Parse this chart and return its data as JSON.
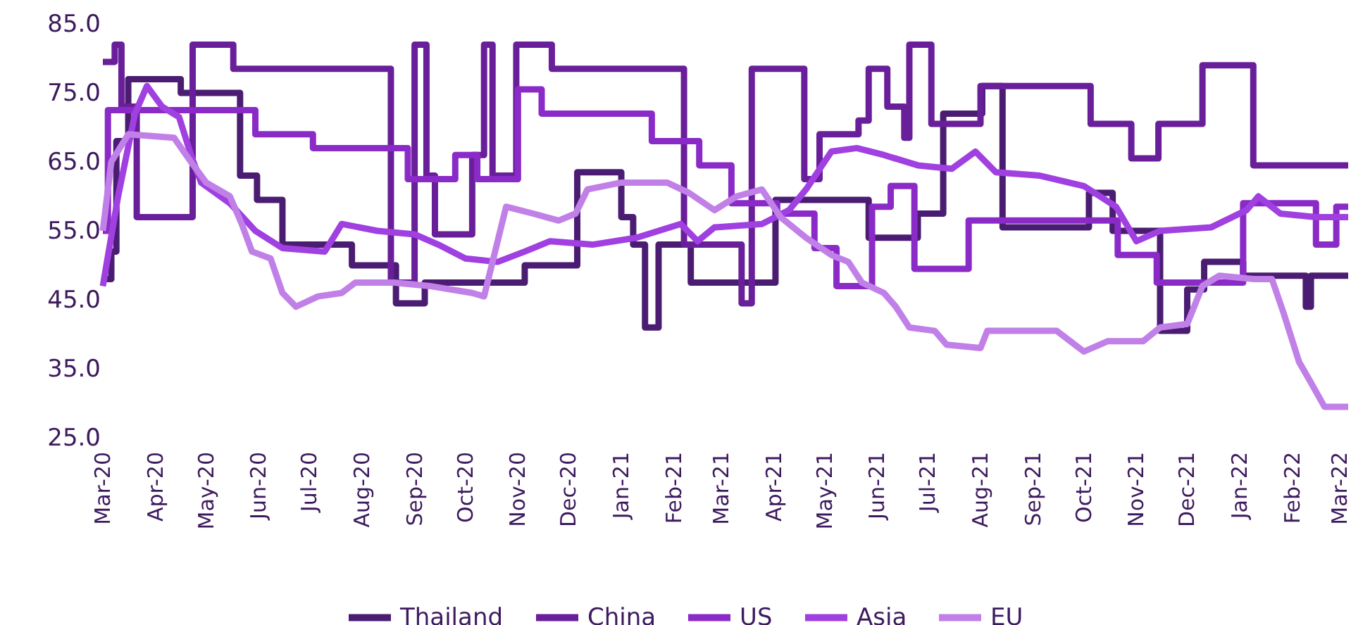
{
  "chart_data": {
    "type": "line",
    "xlim": [
      "2020-03-01",
      "2022-03-06"
    ],
    "xticks": [
      {
        "value": "2020-03-01",
        "label": "Mar-20"
      },
      {
        "value": "2020-04-01",
        "label": "Apr-20"
      },
      {
        "value": "2020-05-01",
        "label": "May-20"
      },
      {
        "value": "2020-06-01",
        "label": "Jun-20"
      },
      {
        "value": "2020-07-01",
        "label": "Jul-20"
      },
      {
        "value": "2020-08-01",
        "label": "Aug-20"
      },
      {
        "value": "2020-09-01",
        "label": "Sep-20"
      },
      {
        "value": "2020-10-01",
        "label": "Oct-20"
      },
      {
        "value": "2020-11-01",
        "label": "Nov-20"
      },
      {
        "value": "2020-12-01",
        "label": "Dec-20"
      },
      {
        "value": "2021-01-01",
        "label": "Jan-21"
      },
      {
        "value": "2021-02-01",
        "label": "Feb-21"
      },
      {
        "value": "2021-03-01",
        "label": "Mar-21"
      },
      {
        "value": "2021-04-01",
        "label": "Apr-21"
      },
      {
        "value": "2021-05-01",
        "label": "May-21"
      },
      {
        "value": "2021-06-01",
        "label": "Jun-21"
      },
      {
        "value": "2021-07-01",
        "label": "Jul-21"
      },
      {
        "value": "2021-08-01",
        "label": "Aug-21"
      },
      {
        "value": "2021-09-01",
        "label": "Sep-21"
      },
      {
        "value": "2021-10-01",
        "label": "Oct-21"
      },
      {
        "value": "2021-11-01",
        "label": "Nov-21"
      },
      {
        "value": "2021-12-01",
        "label": "Dec-21"
      },
      {
        "value": "2022-01-01",
        "label": "Jan-22"
      },
      {
        "value": "2022-02-01",
        "label": "Feb-22"
      },
      {
        "value": "2022-03-01",
        "label": "Mar-22"
      }
    ],
    "ylim": [
      25,
      85
    ],
    "yticks": [
      {
        "value": 25,
        "label": "25.0"
      },
      {
        "value": 35,
        "label": "35.0"
      },
      {
        "value": 45,
        "label": "45.0"
      },
      {
        "value": 55,
        "label": "55.0"
      },
      {
        "value": 65,
        "label": "65.0"
      },
      {
        "value": 75,
        "label": "75.0"
      },
      {
        "value": 85,
        "label": "85.0"
      }
    ],
    "grid": false,
    "legend": "bottom",
    "marker": "none",
    "line_style": "solid",
    "series": [
      {
        "name": "Thailand",
        "type": "step",
        "color": "#4b1d72",
        "x": [
          "2020-03-01",
          "2020-03-06",
          "2020-03-09",
          "2020-03-16",
          "2020-04-16",
          "2020-05-21",
          "2020-05-31",
          "2020-06-15",
          "2020-07-26",
          "2020-08-21",
          "2020-09-07",
          "2020-11-05",
          "2020-12-06",
          "2021-01-01",
          "2021-01-08",
          "2021-01-15",
          "2021-01-23",
          "2021-02-11",
          "2021-04-02",
          "2021-05-27",
          "2021-06-25",
          "2021-07-10",
          "2021-08-02",
          "2021-08-14",
          "2021-10-04",
          "2021-10-18",
          "2021-11-15",
          "2021-12-01",
          "2021-12-11",
          "2022-01-03",
          "2022-02-09",
          "2022-02-12",
          "2022-03-06"
        ],
        "values": [
          48,
          52,
          68,
          77,
          75,
          63,
          59.5,
          53,
          50,
          44.5,
          47.5,
          50,
          63.5,
          57,
          53,
          41,
          53,
          47.5,
          59.5,
          54,
          57.5,
          72,
          76,
          55.5,
          60.5,
          55,
          40.5,
          46.5,
          50.5,
          48.5,
          44,
          48.5,
          48.5
        ]
      },
      {
        "name": "China",
        "type": "step",
        "color": "#6a1f9a",
        "x": [
          "2020-03-01",
          "2020-03-08",
          "2020-03-12",
          "2020-03-21",
          "2020-04-23",
          "2020-05-17",
          "2020-08-18",
          "2020-09-01",
          "2020-09-08",
          "2020-09-13",
          "2020-10-05",
          "2020-10-12",
          "2020-10-17",
          "2020-10-31",
          "2020-11-21",
          "2021-02-07",
          "2021-03-13",
          "2021-03-19",
          "2021-04-19",
          "2021-04-28",
          "2021-05-21",
          "2021-05-27",
          "2021-06-07",
          "2021-06-17",
          "2021-06-20",
          "2021-07-03",
          "2021-08-01",
          "2021-10-05",
          "2021-10-29",
          "2021-11-14",
          "2021-12-10",
          "2022-01-09",
          "2022-03-06"
        ],
        "values": [
          79.5,
          82,
          73,
          57,
          82,
          78.5,
          47.5,
          82,
          63,
          54.5,
          66,
          82,
          63,
          82,
          78.5,
          53,
          44.5,
          78.5,
          62.5,
          69,
          71,
          78.5,
          73,
          68.5,
          82,
          70.5,
          76,
          70.5,
          65.5,
          70.5,
          79,
          64.5,
          64.5
        ]
      },
      {
        "name": "US",
        "type": "step",
        "color": "#8a2bc8",
        "x": [
          "2020-03-01",
          "2020-03-04",
          "2020-05-30",
          "2020-07-03",
          "2020-08-28",
          "2020-09-25",
          "2020-10-08",
          "2020-11-01",
          "2020-11-15",
          "2021-01-19",
          "2021-02-16",
          "2021-03-07",
          "2021-04-03",
          "2021-04-25",
          "2021-05-08",
          "2021-05-29",
          "2021-06-09",
          "2021-06-23",
          "2021-07-25",
          "2021-10-21",
          "2021-11-13",
          "2022-01-03",
          "2022-02-15",
          "2022-02-27",
          "2022-03-06"
        ],
        "values": [
          55,
          72.5,
          69,
          67,
          62.5,
          66,
          62.5,
          75.5,
          72,
          68,
          64.5,
          59,
          57.5,
          52.5,
          47,
          58.5,
          61.5,
          49.5,
          56.5,
          51.5,
          47.5,
          59,
          53,
          58.5,
          58.5
        ]
      },
      {
        "name": "Asia",
        "type": "line",
        "color": "#a040e0",
        "x": [
          "2020-03-01",
          "2020-03-10",
          "2020-03-20",
          "2020-03-27",
          "2020-04-05",
          "2020-04-15",
          "2020-04-22",
          "2020-04-28",
          "2020-05-15",
          "2020-05-30",
          "2020-06-15",
          "2020-07-10",
          "2020-07-20",
          "2020-08-10",
          "2020-09-01",
          "2020-09-15",
          "2020-10-01",
          "2020-10-20",
          "2020-11-05",
          "2020-11-20",
          "2020-12-15",
          "2021-01-10",
          "2021-02-05",
          "2021-02-15",
          "2021-02-25",
          "2021-03-25",
          "2021-04-10",
          "2021-04-20",
          "2021-05-05",
          "2021-05-20",
          "2021-06-05",
          "2021-06-25",
          "2021-07-15",
          "2021-07-29",
          "2021-08-10",
          "2021-09-05",
          "2021-10-01",
          "2021-10-20",
          "2021-11-01",
          "2021-11-15",
          "2021-12-15",
          "2022-01-05",
          "2022-01-12",
          "2022-01-25",
          "2022-02-15",
          "2022-03-06"
        ],
        "values": [
          47,
          60,
          72,
          76,
          73,
          71.5,
          66,
          62,
          59,
          55,
          52.5,
          52,
          56,
          55,
          54.5,
          53,
          51,
          50.5,
          52,
          53.5,
          53,
          54,
          56,
          53.5,
          55.5,
          56,
          58,
          61,
          66.5,
          67,
          66,
          64.5,
          64,
          66.5,
          63.5,
          63,
          61.5,
          58.5,
          53.5,
          55,
          55.5,
          58,
          60,
          57.5,
          57,
          57
        ]
      },
      {
        "name": "EU",
        "type": "line",
        "color": "#c080e8",
        "x": [
          "2020-03-01",
          "2020-03-06",
          "2020-03-16",
          "2020-04-12",
          "2020-04-22",
          "2020-05-01",
          "2020-05-15",
          "2020-05-22",
          "2020-05-28",
          "2020-06-08",
          "2020-06-15",
          "2020-06-23",
          "2020-07-06",
          "2020-07-20",
          "2020-07-28",
          "2020-08-20",
          "2020-09-10",
          "2020-10-05",
          "2020-10-12",
          "2020-10-25",
          "2020-11-10",
          "2020-11-25",
          "2020-12-05",
          "2020-12-12",
          "2021-01-01",
          "2021-01-28",
          "2021-02-10",
          "2021-02-25",
          "2021-03-10",
          "2021-03-25",
          "2021-04-05",
          "2021-04-20",
          "2021-05-05",
          "2021-05-15",
          "2021-05-23",
          "2021-06-05",
          "2021-06-12",
          "2021-06-20",
          "2021-07-05",
          "2021-07-12",
          "2021-08-01",
          "2021-08-05",
          "2021-09-15",
          "2021-10-01",
          "2021-10-15",
          "2021-11-05",
          "2021-11-15",
          "2021-12-01",
          "2021-12-10",
          "2021-12-20",
          "2022-01-10",
          "2022-01-20",
          "2022-01-27",
          "2022-02-05",
          "2022-02-12",
          "2022-02-20",
          "2022-03-06"
        ],
        "values": [
          55,
          65,
          69,
          68.5,
          65,
          62,
          60,
          56,
          52,
          51,
          46,
          44,
          45.5,
          46,
          47.5,
          47.5,
          47,
          46,
          45.5,
          58.5,
          57.5,
          56.5,
          57.5,
          61,
          62,
          62,
          60.5,
          58,
          60,
          61,
          57,
          54,
          51.5,
          50.5,
          47.5,
          46,
          44,
          41,
          40.5,
          38.5,
          38,
          40.5,
          40.5,
          37.5,
          39,
          39,
          41,
          41.5,
          47,
          48.5,
          48,
          48,
          43,
          36,
          33,
          29.5,
          29.5
        ]
      }
    ]
  }
}
